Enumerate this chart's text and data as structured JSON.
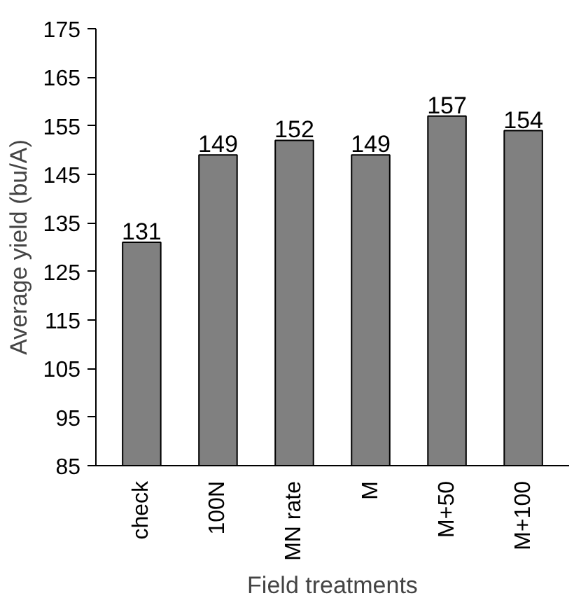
{
  "chart_data": {
    "type": "bar",
    "xlabel": "Field treatments",
    "ylabel": "Average yield (bu/A)",
    "categories": [
      "check",
      "100N",
      "MN rate",
      "M",
      "M+50",
      "M+100"
    ],
    "values": [
      131,
      149,
      152,
      149,
      157,
      154
    ],
    "color": "#808080",
    "ylim": [
      85,
      175
    ],
    "yticks": [
      85,
      95,
      105,
      115,
      125,
      135,
      145,
      155,
      165,
      175
    ],
    "data_labels": true,
    "grid": false
  }
}
